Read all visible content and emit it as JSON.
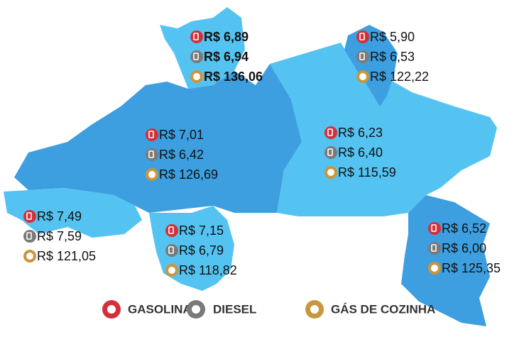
{
  "regions": [
    {
      "prices": [
        "R$ 6,89",
        "R$ 6,94",
        "R$ 136,06"
      ],
      "bold": true
    },
    {
      "prices": [
        "R$ 5,90",
        "R$ 6,53",
        "R$ 122,22"
      ],
      "bold": false
    },
    {
      "prices": [
        "R$ 7,01",
        "R$ 6,42",
        "R$ 126,69"
      ],
      "bold": false
    },
    {
      "prices": [
        "R$ 6,23",
        "R$ 6,40",
        "R$ 115,59"
      ],
      "bold": false
    },
    {
      "prices": [
        "R$ 7,49",
        "R$ 7,59",
        "R$ 121,05"
      ],
      "bold": false
    },
    {
      "prices": [
        "R$ 7,15",
        "R$ 6,79",
        "R$ 118,82"
      ],
      "bold": false
    },
    {
      "prices": [
        "R$ 6,52",
        "R$ 6,00",
        "R$ 125,35"
      ],
      "bold": false
    }
  ],
  "legend": [
    "GASOLINA",
    "DIESEL",
    "GÁS DE COZINHA"
  ]
}
